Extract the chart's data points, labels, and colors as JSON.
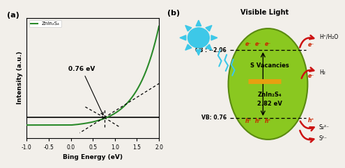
{
  "panel_a": {
    "label": "(a)",
    "xlabel": "Bing Energy (eV)",
    "ylabel": "Intensity (a.u.)",
    "legend_label": "ZnIn₂S₄",
    "curve_color": "#2a8a2a",
    "xlim": [
      -1.0,
      2.0
    ],
    "xticks": [
      -1.0,
      -0.5,
      0.0,
      0.5,
      1.0,
      1.5,
      2.0
    ],
    "annotation_text": "0.76 eV",
    "bg_color": "#f2efea"
  },
  "panel_b": {
    "label": "(b)",
    "visible_light_text": "Visible Light",
    "cb_text": "CB : −2.06",
    "vb_text": "VB: 0.76",
    "center_text1": "S Vacancies",
    "center_text2": "ZnIn₂S₄",
    "center_text3": "2.82 eV",
    "h2o_text": "H⁺/H₂O",
    "h2_text": "H₂",
    "s2_text": "S₂²⁻",
    "s_text": "S²⁻",
    "ellipse_color": "#8ac820",
    "ellipse_edge": "#5a8a10",
    "sun_color": "#3dc8e8",
    "vacancy_bar_color": "#e8a010",
    "arrow_color": "#cc1111",
    "label_color": "#cc2200",
    "dashed_color": "black",
    "bg_color": "#f2efea"
  }
}
